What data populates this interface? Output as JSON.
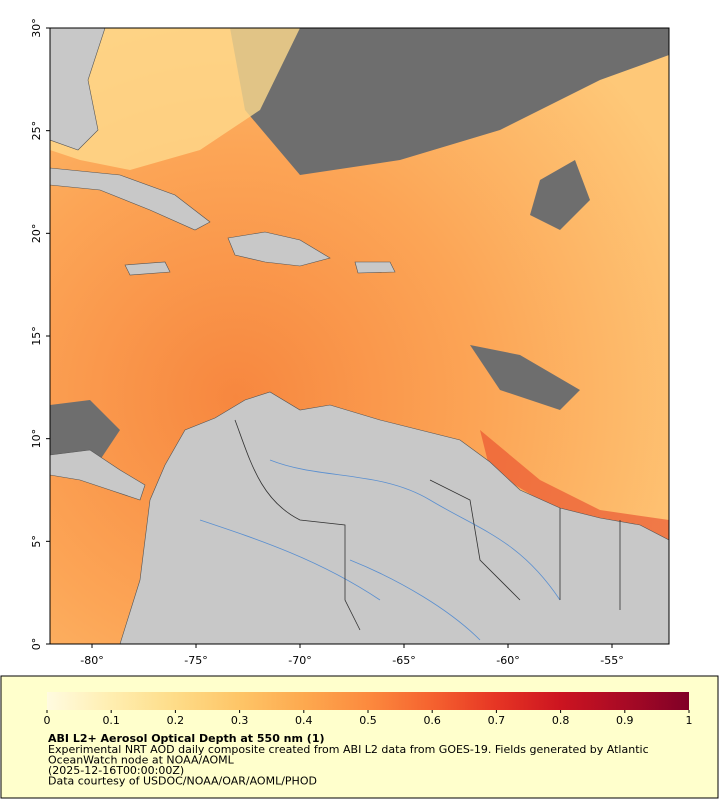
{
  "map": {
    "lonlim": [
      -82.02,
      -52.26
    ],
    "latlim": [
      0,
      30
    ],
    "lon_ticks": [
      {
        "value": -80,
        "label": "-80°"
      },
      {
        "value": -75,
        "label": "-75°"
      },
      {
        "value": -70,
        "label": "-70°"
      },
      {
        "value": -65,
        "label": "-65°"
      },
      {
        "value": -60,
        "label": "-60°"
      },
      {
        "value": -55,
        "label": "-55°"
      }
    ],
    "lat_ticks": [
      {
        "value": 0,
        "label": "0°"
      },
      {
        "value": 5,
        "label": "5°"
      },
      {
        "value": 10,
        "label": "10°"
      },
      {
        "value": 15,
        "label": "15°"
      },
      {
        "value": 20,
        "label": "20°"
      },
      {
        "value": 25,
        "label": "25°"
      },
      {
        "value": 30,
        "label": "30°"
      }
    ],
    "colorbar": {
      "lim": [
        0,
        1
      ],
      "ticks": [
        0,
        0.1,
        0.2,
        0.3,
        0.4,
        0.5,
        0.6,
        0.7,
        0.8,
        0.9,
        1
      ],
      "colors": [
        "#fffbe0",
        "#ffeeb0",
        "#fedc88",
        "#fec567",
        "#fda94f",
        "#fc8a3e",
        "#f5622f",
        "#e63524",
        "#cc1420",
        "#a80a25",
        "#800026"
      ]
    },
    "caption": {
      "title": "ABI L2+ Aerosol Optical Depth at 550 nm (1)",
      "lines": [
        "Experimental NRT AOD daily composite created from ABI L2 data from GOES-19. Fields generated by Atlantic",
        "OceanWatch node at NOAA/AOML",
        "(2025-12-16T00:00:00Z)",
        "Data courtesy of USDOC/NOAA/OAR/AOML/PHOD"
      ]
    }
  }
}
